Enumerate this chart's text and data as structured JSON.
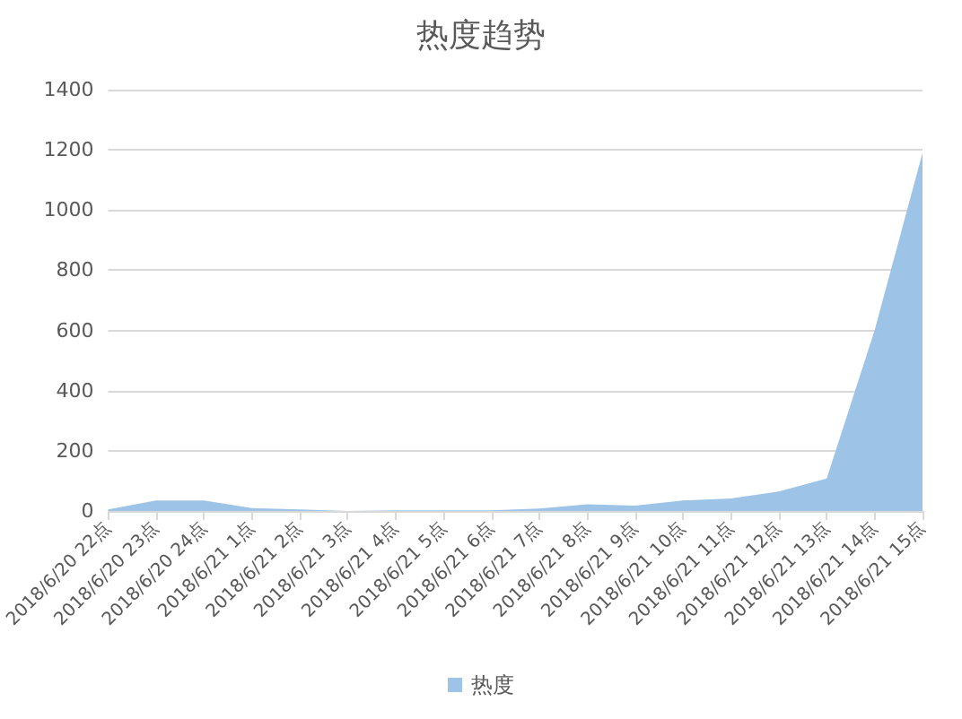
{
  "chart_data": {
    "type": "area",
    "title": "热度趋势",
    "categories": [
      "2018/6/20 22点",
      "2018/6/20 23点",
      "2018/6/20 24点",
      "2018/6/21 1点",
      "2018/6/21 2点",
      "2018/6/21 3点",
      "2018/6/21 4点",
      "2018/6/21 5点",
      "2018/6/21 6点",
      "2018/6/21 7点",
      "2018/6/21 8点",
      "2018/6/21 9点",
      "2018/6/21 10点",
      "2018/6/21 11点",
      "2018/6/21 12点",
      "2018/6/21 13点",
      "2018/6/21 14点",
      "2018/6/21 15点"
    ],
    "series": [
      {
        "name": "热度",
        "color": "#9dc3e6",
        "values": [
          5,
          35,
          35,
          10,
          5,
          0,
          2,
          2,
          2,
          8,
          22,
          18,
          35,
          42,
          65,
          108,
          600,
          1190
        ]
      }
    ],
    "ylim": [
      0,
      1400
    ],
    "yticks": [
      0,
      200,
      400,
      600,
      800,
      1000,
      1200,
      1400
    ],
    "grid": "y",
    "legend": "bottom",
    "marker": "none"
  }
}
